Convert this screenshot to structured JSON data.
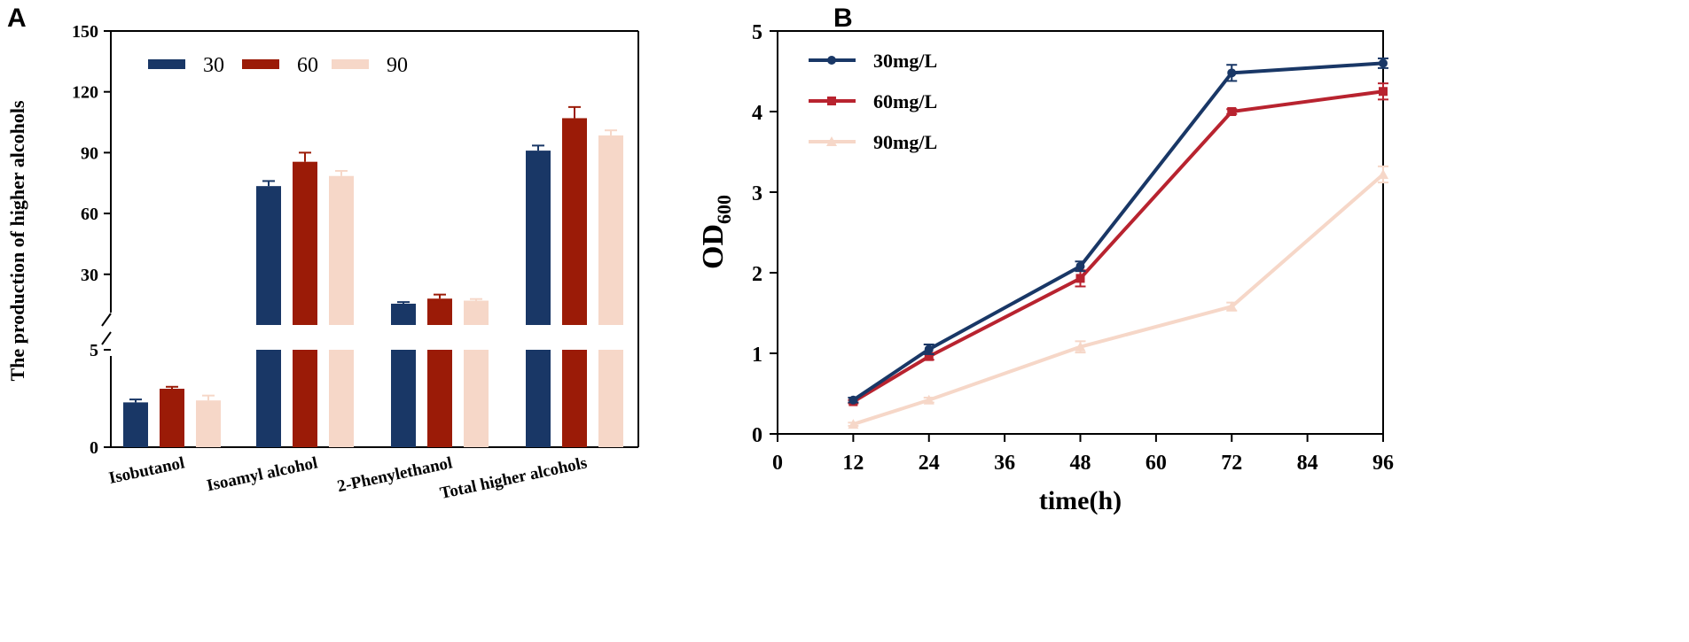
{
  "panel_labels": {
    "a": "A",
    "b": "B"
  },
  "chart_data": [
    {
      "type": "bar",
      "panel": "A",
      "ylabel": "The production of  higher alcohols",
      "xlabel": "",
      "categories": [
        "Isobutanol",
        "Isoamyl alcohol",
        "2-Phenylethanol",
        "Total higher alcohols"
      ],
      "series": [
        {
          "name": "30",
          "color": "#193766",
          "values": [
            2.3,
            73.5,
            15.5,
            91.0
          ],
          "errors": [
            0.15,
            2.5,
            0.8,
            2.5
          ]
        },
        {
          "name": "60",
          "color": "#9b1b07",
          "values": [
            3.0,
            85.5,
            18.0,
            107.0
          ],
          "errors": [
            0.1,
            4.5,
            2.0,
            5.5
          ]
        },
        {
          "name": "90",
          "color": "#f6d7c8",
          "values": [
            2.4,
            78.5,
            17.0,
            98.5
          ],
          "errors": [
            0.25,
            2.5,
            0.8,
            2.5
          ]
        }
      ],
      "broken_axis": {
        "lower_range": [
          0,
          5
        ],
        "upper_range": [
          5,
          150
        ]
      },
      "yticks_lower": [
        "0",
        "5"
      ],
      "yticks_upper": [
        "30",
        "60",
        "90",
        "120",
        "150"
      ],
      "legend_position": "top-left"
    },
    {
      "type": "line",
      "panel": "B",
      "xlabel": "time(h)",
      "ylabel_main": "OD",
      "ylabel_sub": "600",
      "x": [
        12,
        24,
        48,
        72,
        96
      ],
      "series": [
        {
          "name": "30mg/L",
          "color": "#193766",
          "marker": "circle",
          "values": [
            0.42,
            1.05,
            2.08,
            4.48,
            4.6
          ],
          "errors": [
            0.03,
            0.06,
            0.06,
            0.1,
            0.06
          ]
        },
        {
          "name": "60mg/L",
          "color": "#b8232f",
          "marker": "square",
          "values": [
            0.4,
            0.96,
            1.93,
            4.0,
            4.25
          ],
          "errors": [
            0.02,
            0.04,
            0.1,
            0.03,
            0.1
          ]
        },
        {
          "name": "90mg/L",
          "color": "#f6d7c8",
          "marker": "triangle",
          "values": [
            0.12,
            0.42,
            1.08,
            1.58,
            3.22
          ],
          "errors": [
            0.02,
            0.03,
            0.07,
            0.05,
            0.1
          ]
        }
      ],
      "xlim": [
        0,
        96
      ],
      "ylim": [
        0,
        5
      ],
      "xticks": [
        "0",
        "12",
        "24",
        "36",
        "48",
        "60",
        "72",
        "84",
        "96"
      ],
      "yticks": [
        "0",
        "1",
        "2",
        "3",
        "4",
        "5"
      ],
      "legend_position": "top-left"
    }
  ]
}
